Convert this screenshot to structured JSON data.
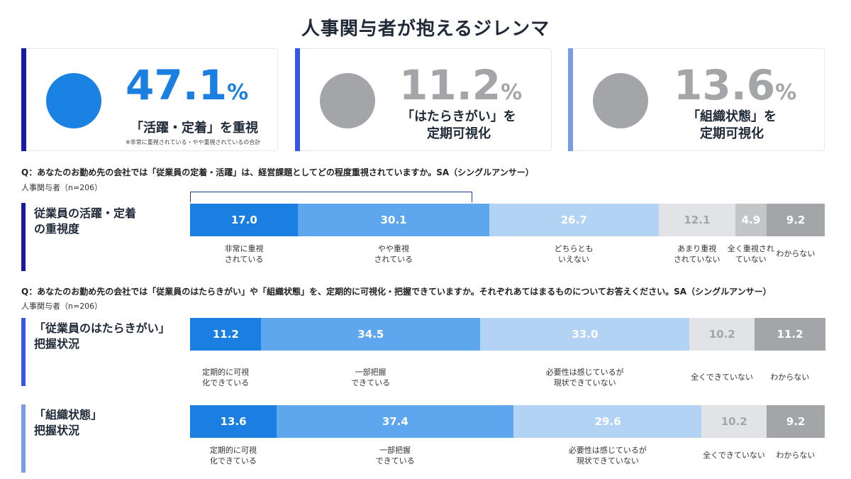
{
  "title": "人事関与者が抱えるジレンマ",
  "cards": [
    {
      "value": "47.1",
      "unit": "%",
      "label": [
        "「活躍・定着」を重視"
      ],
      "note": "※非常に重視されている・やや重視されているの合計",
      "accent": "#1a1aa8",
      "circle": "#1a82e2",
      "value_color": "#1a7fe0"
    },
    {
      "value": "11.2",
      "unit": "%",
      "label": [
        "「はたらきがい」を",
        "定期可視化"
      ],
      "note": "",
      "accent": "#3557e8",
      "circle": "#a3a5a8",
      "value_color": "#a3a5a8"
    },
    {
      "value": "13.6",
      "unit": "%",
      "label": [
        "「組織状態」を",
        "定期可視化"
      ],
      "note": "",
      "accent": "#7a9be8",
      "circle": "#a3a5a8",
      "value_color": "#a3a5a8"
    }
  ],
  "q1": {
    "question": "Q：あなたのお勤め先の会社では「従業員の定着・活躍」は、経営課題としてどの程度重視されていますか。SA（シングルアンサー）",
    "sample": "人事関与者（n=206）"
  },
  "q2": {
    "question": "Q：あなたのお勤め先の会社では「従業員のはたらきがい」や「組織状態」を、定期的に可視化・把握できていますか。それぞれあてはまるものについてお答えください。SA（シングルアンサー）",
    "sample": "人事関与者（n=206）"
  },
  "chart_data": [
    {
      "type": "bar",
      "stacked": true,
      "orientation": "horizontal",
      "title": [
        "従業員の活躍・定着",
        "の重視度"
      ],
      "accent": "#1a1a9c",
      "categories": [
        [
          "非常に重視",
          "されている"
        ],
        [
          "やや重視",
          "されている"
        ],
        [
          "どちらとも",
          "いえない"
        ],
        [
          "あまり重視",
          "されていない"
        ],
        [
          "全く重視され",
          "ていない"
        ],
        [
          "わからない"
        ]
      ],
      "values": [
        17.0,
        30.1,
        26.7,
        12.1,
        4.9,
        9.2
      ],
      "labels": [
        "17.0",
        "30.1",
        "26.7",
        "12.1",
        "4.9",
        "9.2"
      ],
      "colors": [
        "#1a7fe0",
        "#5ea6ee",
        "#b3d3f4",
        "#e1e3e6",
        "#c3c5c8",
        "#a3a5a8"
      ],
      "text_colors": [
        "#ffffff",
        "#ffffff",
        "#ffffff",
        "#a3a5a8",
        "#ffffff",
        "#ffffff"
      ],
      "xlim": [
        0,
        100
      ]
    },
    {
      "type": "bar",
      "stacked": true,
      "orientation": "horizontal",
      "title": [
        "「従業員のはたらきがい」",
        "把握状況"
      ],
      "accent": "#3557e8",
      "categories": [
        [
          "定期的に可視",
          "化できている"
        ],
        [
          "一部把握",
          "できている"
        ],
        [
          "必要性は感じているが",
          "現状できていない"
        ],
        [
          "全くできていない"
        ],
        [
          "わからない"
        ]
      ],
      "values": [
        11.2,
        34.5,
        33.0,
        10.2,
        11.2
      ],
      "labels": [
        "11.2",
        "34.5",
        "33.0",
        "10.2",
        "11.2"
      ],
      "colors": [
        "#1a7fe0",
        "#5ea6ee",
        "#b3d3f4",
        "#e1e3e6",
        "#a3a5a8"
      ],
      "text_colors": [
        "#ffffff",
        "#ffffff",
        "#ffffff",
        "#a3a5a8",
        "#ffffff"
      ],
      "xlim": [
        0,
        100
      ]
    },
    {
      "type": "bar",
      "stacked": true,
      "orientation": "horizontal",
      "title": [
        "「組織状態」",
        "把握状況"
      ],
      "accent": "#7a9be8",
      "categories": [
        [
          "定期的に可視",
          "化できている"
        ],
        [
          "一部把握",
          "できている"
        ],
        [
          "必要性は感じているが",
          "現状できていない"
        ],
        [
          "全くできていない"
        ],
        [
          "わからない"
        ]
      ],
      "values": [
        13.6,
        37.4,
        29.6,
        10.2,
        9.2
      ],
      "labels": [
        "13.6",
        "37.4",
        "29.6",
        "10.2",
        "9.2"
      ],
      "colors": [
        "#1a7fe0",
        "#5ea6ee",
        "#b3d3f4",
        "#e1e3e6",
        "#a3a5a8"
      ],
      "text_colors": [
        "#ffffff",
        "#ffffff",
        "#ffffff",
        "#a3a5a8",
        "#ffffff"
      ],
      "xlim": [
        0,
        100
      ]
    }
  ]
}
